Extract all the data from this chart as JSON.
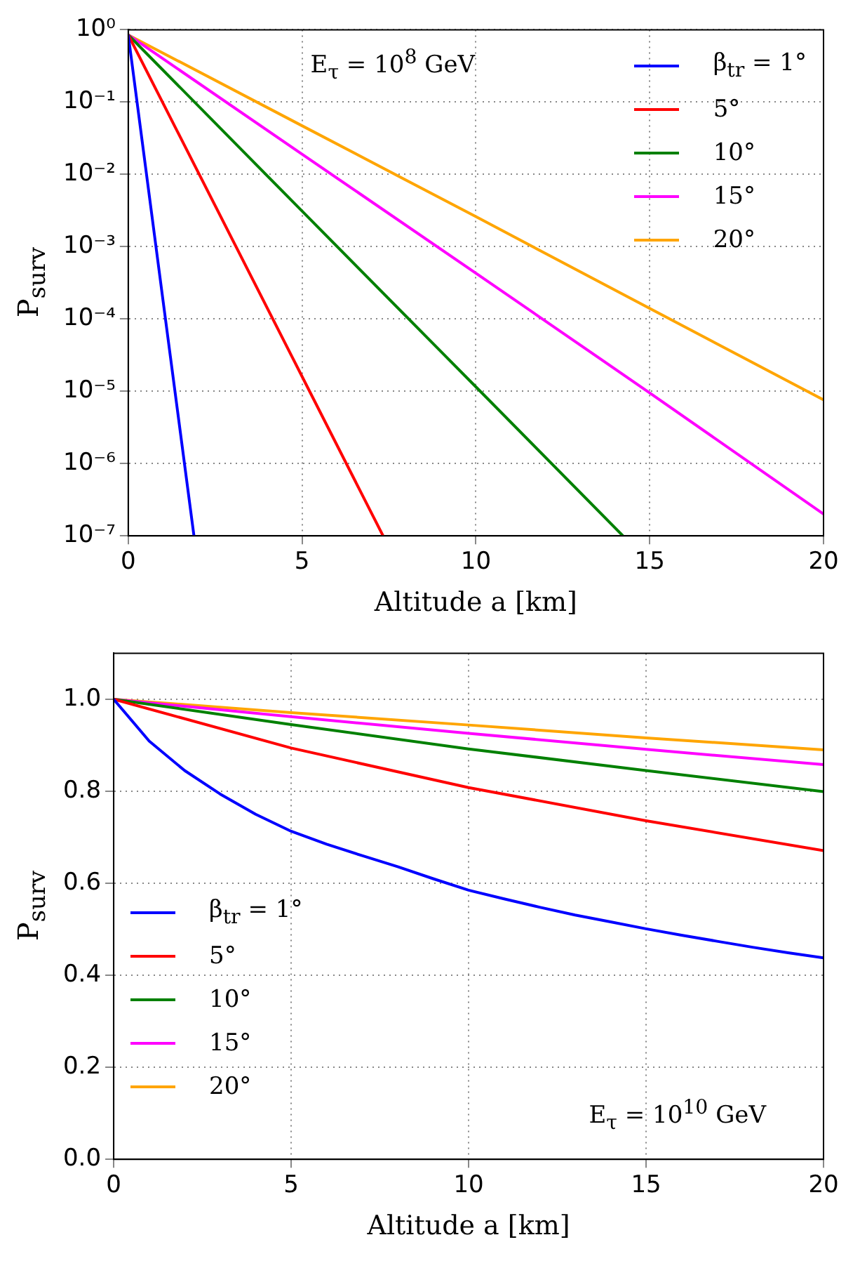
{
  "chart_data": [
    {
      "type": "line",
      "xlabel": "Altitude a [km]",
      "ylabel": "P$_{surv}$",
      "log": "y",
      "grid": true,
      "line_style": "solid",
      "legend": "top right",
      "xlim": [
        0,
        20
      ],
      "xticks": [
        0,
        5,
        10,
        15,
        20
      ],
      "ylim": [
        1e-07,
        1
      ],
      "yticks": [
        {
          "value": 1,
          "label": "10⁰"
        },
        {
          "value": 0.1,
          "label": "10⁻¹"
        },
        {
          "value": 0.01,
          "label": "10⁻²"
        },
        {
          "value": 0.001,
          "label": "10⁻³"
        },
        {
          "value": 0.0001,
          "label": "10⁻⁴"
        },
        {
          "value": 1e-05,
          "label": "10⁻⁵"
        },
        {
          "value": 1e-06,
          "label": "10⁻⁶"
        },
        {
          "value": 1e-07,
          "label": "10⁻⁷"
        }
      ],
      "annotations": [
        "E$_{τ}$ = 10$^{8}$ GeV"
      ],
      "series": [
        {
          "name": "β$_{tr}$ = 1°",
          "color": "#0000ff",
          "x": [
            0,
            1,
            1.89
          ],
          "values": [
            0.85,
            0.00018,
            1e-07
          ]
        },
        {
          "name": "5°",
          "color": "#ff0000",
          "x": [
            0,
            5,
            7.33
          ],
          "values": [
            0.85,
            1.6e-05,
            1e-07
          ]
        },
        {
          "name": "10°",
          "color": "#008000",
          "x": [
            0,
            5,
            10,
            14.23
          ],
          "values": [
            0.85,
            0.0031,
            1.15e-05,
            1e-07
          ]
        },
        {
          "name": "15°",
          "color": "#ff00ff",
          "x": [
            0,
            5,
            10,
            15,
            20
          ],
          "values": [
            0.85,
            0.019,
            0.00043,
            9.5e-06,
            2e-07
          ]
        },
        {
          "name": "20°",
          "color": "#ffa500",
          "x": [
            0,
            5,
            10,
            15,
            20
          ],
          "values": [
            0.85,
            0.047,
            0.0026,
            0.00014,
            7.6e-06
          ]
        }
      ]
    },
    {
      "type": "line",
      "xlabel": "Altitude a [km]",
      "ylabel": "P$_{surv}$",
      "grid": true,
      "line_style": "solid",
      "legend": "left",
      "xlim": [
        0,
        20
      ],
      "xticks": [
        0,
        5,
        10,
        15,
        20
      ],
      "ylim": [
        0,
        1.1
      ],
      "yticks": [
        {
          "value": 0,
          "label": "0.0"
        },
        {
          "value": 0.2,
          "label": "0.2"
        },
        {
          "value": 0.4,
          "label": "0.4"
        },
        {
          "value": 0.6,
          "label": "0.6"
        },
        {
          "value": 0.8,
          "label": "0.8"
        },
        {
          "value": 1,
          "label": "1.0"
        }
      ],
      "annotations": [
        "E$_{τ}$ = 10$^{10}$ GeV"
      ],
      "series": [
        {
          "name": "β$_{tr}$ = 1°",
          "color": "#0000ff",
          "x": [
            0,
            1,
            2,
            3,
            4,
            5,
            6,
            7,
            8,
            9,
            10,
            11,
            12,
            13,
            14,
            15,
            16,
            17,
            18,
            19,
            20
          ],
          "values": [
            1,
            0.909,
            0.845,
            0.794,
            0.75,
            0.713,
            0.685,
            0.66,
            0.636,
            0.61,
            0.585,
            0.566,
            0.548,
            0.531,
            0.516,
            0.501,
            0.487,
            0.474,
            0.461,
            0.449,
            0.438
          ]
        },
        {
          "name": "5°",
          "color": "#ff0000",
          "x": [
            0,
            5,
            10,
            15,
            20
          ],
          "values": [
            1,
            0.894,
            0.808,
            0.736,
            0.671
          ]
        },
        {
          "name": "10°",
          "color": "#008000",
          "x": [
            0,
            5,
            10,
            15,
            20
          ],
          "values": [
            1,
            0.945,
            0.892,
            0.845,
            0.799
          ]
        },
        {
          "name": "15°",
          "color": "#ff00ff",
          "x": [
            0,
            5,
            10,
            15,
            20
          ],
          "values": [
            1,
            0.962,
            0.926,
            0.891,
            0.858
          ]
        },
        {
          "name": "20°",
          "color": "#ffa500",
          "x": [
            0,
            5,
            10,
            15,
            20
          ],
          "values": [
            1,
            0.971,
            0.944,
            0.916,
            0.89
          ]
        }
      ]
    }
  ]
}
